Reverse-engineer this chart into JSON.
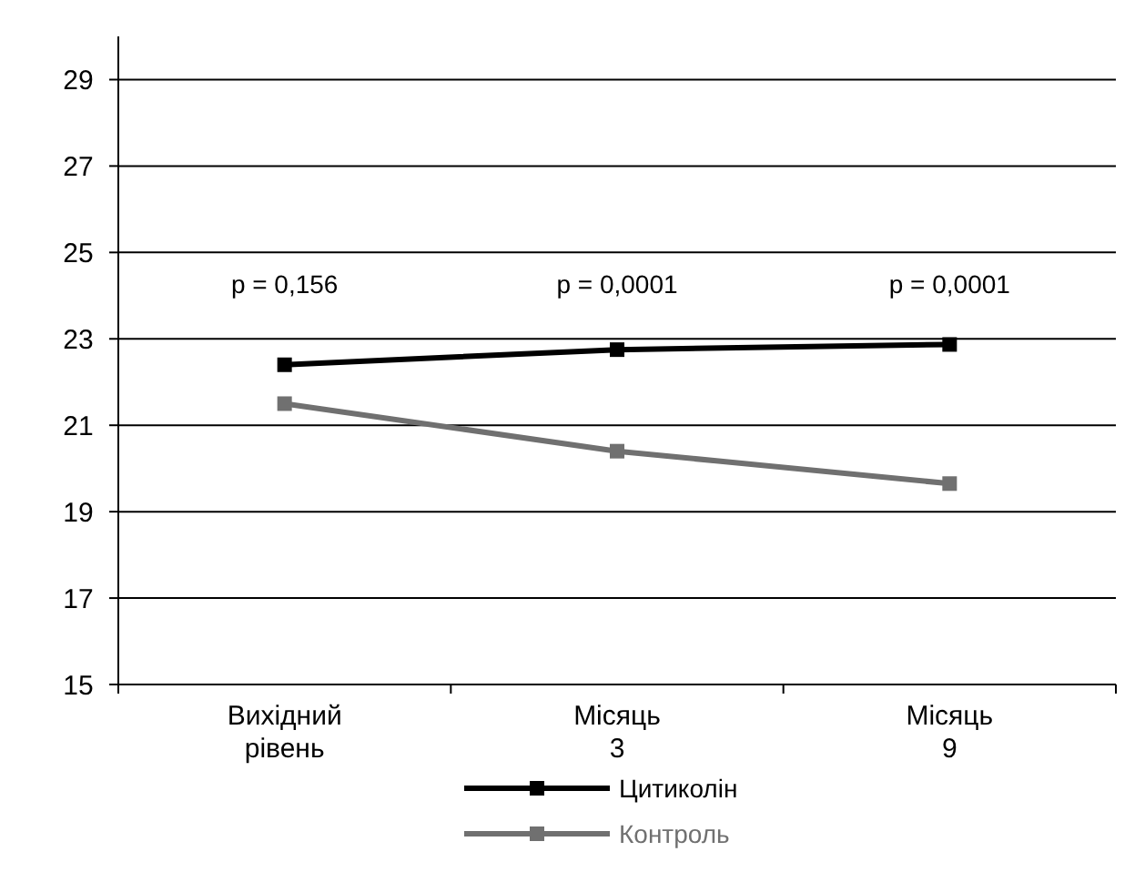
{
  "chart_data": {
    "type": "line",
    "categories": [
      "Вихідний рівень",
      "Місяць 3",
      "Місяць 9"
    ],
    "series": [
      {
        "name": "Цитиколін",
        "color": "#000000",
        "values": [
          22.4,
          22.75,
          22.87
        ]
      },
      {
        "name": "Контроль",
        "color": "#707070",
        "values": [
          21.5,
          20.4,
          19.65
        ]
      }
    ],
    "ylim": [
      15,
      30
    ],
    "yticks": [
      15,
      17,
      19,
      21,
      23,
      25,
      27,
      29
    ],
    "grid": "y",
    "legend": "bottom",
    "marker": "square",
    "line_style": "solid",
    "annotations": [
      "p = 0,156",
      "p = 0,0001",
      "p = 0,0001"
    ]
  }
}
